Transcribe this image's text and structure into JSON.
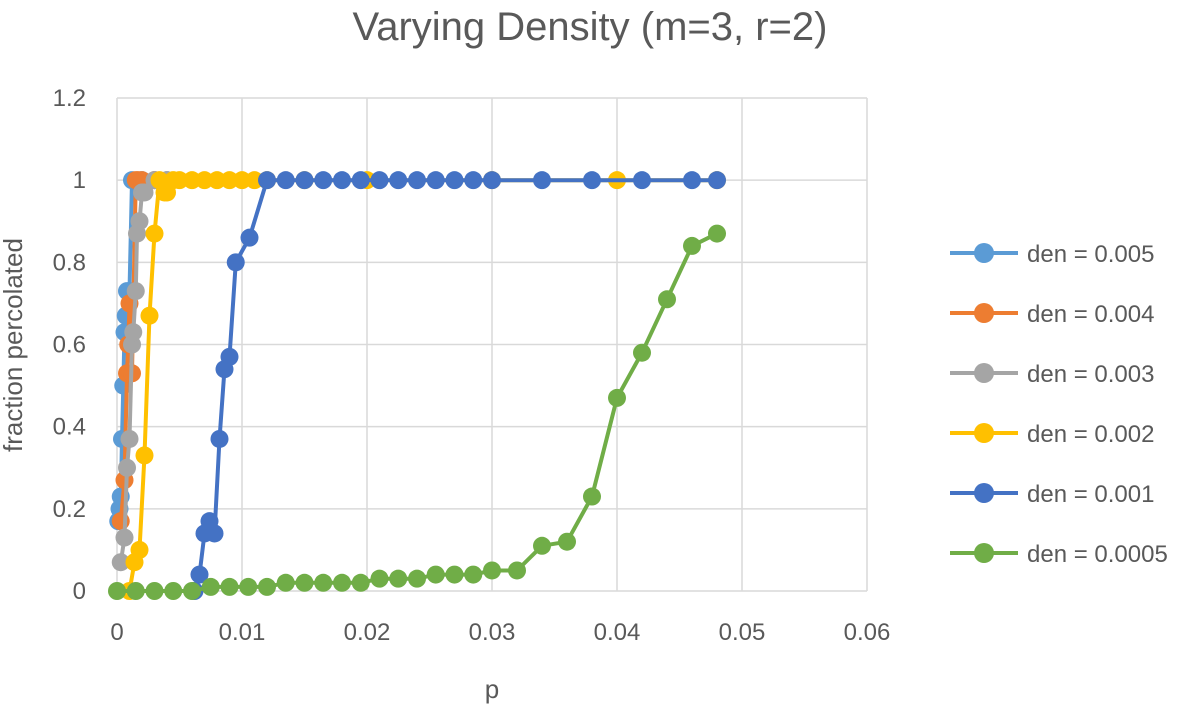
{
  "chart_data": {
    "type": "scatter",
    "title": "Varying Density (m=3, r=2)",
    "xlabel": "p",
    "ylabel": "fraction percolated",
    "xlim": [
      0,
      0.06
    ],
    "ylim": [
      0,
      1.2
    ],
    "x_ticks": [
      "0",
      "0.01",
      "0.02",
      "0.03",
      "0.04",
      "0.05",
      "0.06"
    ],
    "y_ticks": [
      "0",
      "0.2",
      "0.4",
      "0.6",
      "0.8",
      "1",
      "1.2"
    ],
    "x_tick_values": [
      0,
      0.01,
      0.02,
      0.03,
      0.04,
      0.05,
      0.06
    ],
    "y_tick_values": [
      0,
      0.2,
      0.4,
      0.6,
      0.8,
      1,
      1.2
    ],
    "grid": true,
    "legend_position": "right",
    "series": [
      {
        "name": "den = 0.005",
        "color": "#5B9BD5",
        "points": [
          [
            0.0001,
            0.17
          ],
          [
            0.0002,
            0.2
          ],
          [
            0.0003,
            0.23
          ],
          [
            0.0004,
            0.37
          ],
          [
            0.0005,
            0.5
          ],
          [
            0.0006,
            0.63
          ],
          [
            0.0007,
            0.67
          ],
          [
            0.0008,
            0.73
          ],
          [
            0.001,
            0.73
          ],
          [
            0.0012,
            1.0
          ],
          [
            0.002,
            1.0
          ],
          [
            0.003,
            1.0
          ],
          [
            0.004,
            1.0
          ]
        ]
      },
      {
        "name": "den = 0.004",
        "color": "#ED7D31",
        "points": [
          [
            0.0003,
            0.17
          ],
          [
            0.0006,
            0.27
          ],
          [
            0.0008,
            0.53
          ],
          [
            0.0009,
            0.6
          ],
          [
            0.001,
            0.7
          ],
          [
            0.0012,
            0.53
          ],
          [
            0.0015,
            1.0
          ],
          [
            0.0017,
            1.0
          ],
          [
            0.002,
            1.0
          ],
          [
            0.003,
            1.0
          ]
        ]
      },
      {
        "name": "den = 0.003",
        "color": "#A5A5A5",
        "points": [
          [
            0.0003,
            0.07
          ],
          [
            0.0006,
            0.13
          ],
          [
            0.0008,
            0.3
          ],
          [
            0.001,
            0.37
          ],
          [
            0.0012,
            0.6
          ],
          [
            0.0013,
            0.63
          ],
          [
            0.0015,
            0.73
          ],
          [
            0.0016,
            0.87
          ],
          [
            0.0018,
            0.9
          ],
          [
            0.002,
            0.97
          ],
          [
            0.0022,
            0.97
          ],
          [
            0.003,
            1.0
          ],
          [
            0.004,
            1.0
          ]
        ]
      },
      {
        "name": "den = 0.002",
        "color": "#FFC000",
        "points": [
          [
            0.001,
            0.0
          ],
          [
            0.0014,
            0.07
          ],
          [
            0.0018,
            0.1
          ],
          [
            0.0022,
            0.33
          ],
          [
            0.0026,
            0.67
          ],
          [
            0.003,
            0.87
          ],
          [
            0.0034,
            1.0
          ],
          [
            0.0038,
            0.97
          ],
          [
            0.004,
            0.97
          ],
          [
            0.0045,
            1.0
          ],
          [
            0.005,
            1.0
          ],
          [
            0.006,
            1.0
          ],
          [
            0.007,
            1.0
          ],
          [
            0.008,
            1.0
          ],
          [
            0.009,
            1.0
          ],
          [
            0.01,
            1.0
          ],
          [
            0.011,
            1.0
          ],
          [
            0.012,
            1.0
          ],
          [
            0.015,
            1.0
          ],
          [
            0.02,
            1.0
          ],
          [
            0.03,
            1.0
          ],
          [
            0.04,
            1.0
          ],
          [
            0.048,
            1.0
          ]
        ]
      },
      {
        "name": "den = 0.001",
        "color": "#4472C4",
        "points": [
          [
            0.0062,
            0.0
          ],
          [
            0.0066,
            0.04
          ],
          [
            0.007,
            0.14
          ],
          [
            0.0074,
            0.17
          ],
          [
            0.0078,
            0.14
          ],
          [
            0.0082,
            0.37
          ],
          [
            0.0086,
            0.54
          ],
          [
            0.009,
            0.57
          ],
          [
            0.0095,
            0.8
          ],
          [
            0.0106,
            0.86
          ],
          [
            0.012,
            1.0
          ],
          [
            0.0135,
            1.0
          ],
          [
            0.015,
            1.0
          ],
          [
            0.0165,
            1.0
          ],
          [
            0.018,
            1.0
          ],
          [
            0.0195,
            1.0
          ],
          [
            0.021,
            1.0
          ],
          [
            0.0225,
            1.0
          ],
          [
            0.024,
            1.0
          ],
          [
            0.0255,
            1.0
          ],
          [
            0.027,
            1.0
          ],
          [
            0.0285,
            1.0
          ],
          [
            0.03,
            1.0
          ],
          [
            0.034,
            1.0
          ],
          [
            0.038,
            1.0
          ],
          [
            0.042,
            1.0
          ],
          [
            0.046,
            1.0
          ],
          [
            0.048,
            1.0
          ]
        ]
      },
      {
        "name": "den = 0.0005",
        "color": "#70AD47",
        "points": [
          [
            0.0,
            0.0
          ],
          [
            0.0015,
            0.0
          ],
          [
            0.003,
            0.0
          ],
          [
            0.0045,
            0.0
          ],
          [
            0.006,
            0.0
          ],
          [
            0.0075,
            0.01
          ],
          [
            0.009,
            0.01
          ],
          [
            0.0105,
            0.01
          ],
          [
            0.012,
            0.01
          ],
          [
            0.0135,
            0.02
          ],
          [
            0.015,
            0.02
          ],
          [
            0.0165,
            0.02
          ],
          [
            0.018,
            0.02
          ],
          [
            0.0195,
            0.02
          ],
          [
            0.021,
            0.03
          ],
          [
            0.0225,
            0.03
          ],
          [
            0.024,
            0.03
          ],
          [
            0.0255,
            0.04
          ],
          [
            0.027,
            0.04
          ],
          [
            0.0285,
            0.04
          ],
          [
            0.03,
            0.05
          ],
          [
            0.032,
            0.05
          ],
          [
            0.034,
            0.11
          ],
          [
            0.036,
            0.12
          ],
          [
            0.038,
            0.23
          ],
          [
            0.04,
            0.47
          ],
          [
            0.042,
            0.58
          ],
          [
            0.044,
            0.71
          ],
          [
            0.046,
            0.84
          ],
          [
            0.048,
            0.87
          ]
        ]
      }
    ]
  }
}
